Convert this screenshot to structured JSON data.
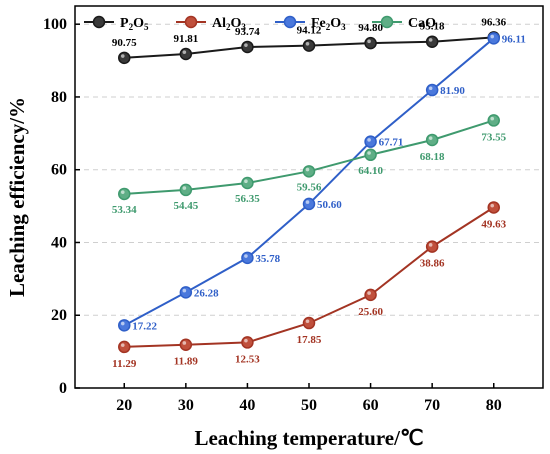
{
  "chart_data": {
    "type": "line",
    "title": "",
    "xlabel": "Leaching temperature/℃",
    "ylabel": "Leaching efficiency/%",
    "x": [
      20,
      30,
      40,
      50,
      60,
      70,
      80
    ],
    "xlim": [
      12,
      88
    ],
    "ylim": [
      0,
      105
    ],
    "xticks": [
      "20",
      "30",
      "40",
      "50",
      "60",
      "70",
      "80"
    ],
    "yticks": [
      "0",
      "20",
      "40",
      "60",
      "80",
      "100"
    ],
    "grid": "horizontal dashed",
    "legend": "top",
    "series": [
      {
        "name": "P2O5",
        "name_parts": [
          "P",
          "2",
          "O",
          "5"
        ],
        "color": "#1a1a1a",
        "marker_fill": "#3a3a3a",
        "label_color": "#000000",
        "values": [
          90.75,
          91.81,
          93.74,
          94.12,
          94.8,
          95.18,
          96.36
        ],
        "labels": [
          "90.75",
          "91.81",
          "93.74",
          "94.12",
          "94.80",
          "95.18",
          "96.36"
        ]
      },
      {
        "name": "Al2O3",
        "name_parts": [
          "Al",
          "2",
          "O",
          "3"
        ],
        "color": "#a33423",
        "marker_fill": "#c0503c",
        "label_color": "#a33423",
        "values": [
          11.29,
          11.89,
          12.53,
          17.85,
          25.6,
          38.86,
          49.63
        ],
        "labels": [
          "11.29",
          "11.89",
          "12.53",
          "17.85",
          "25.60",
          "38.86",
          "49.63"
        ]
      },
      {
        "name": "Fe2O3",
        "name_parts": [
          "Fe",
          "2",
          "O",
          "3"
        ],
        "color": "#2f5fc8",
        "marker_fill": "#4a78dc",
        "label_color": "#2f5fc8",
        "values": [
          17.22,
          26.28,
          35.78,
          50.6,
          67.71,
          81.9,
          96.11
        ],
        "labels": [
          "17.22",
          "26.28",
          "35.78",
          "50.60",
          "67.71",
          "81.90",
          "96.11"
        ]
      },
      {
        "name": "CaO",
        "name_parts": [
          "CaO",
          "",
          "",
          ""
        ],
        "color": "#3f9a6e",
        "marker_fill": "#5fae86",
        "label_color": "#3f9a6e",
        "values": [
          53.34,
          54.45,
          56.35,
          59.56,
          64.1,
          68.18,
          73.55
        ],
        "labels": [
          "53.34",
          "54.45",
          "56.35",
          "59.56",
          "64.10",
          "68.18",
          "73.55"
        ]
      }
    ]
  }
}
